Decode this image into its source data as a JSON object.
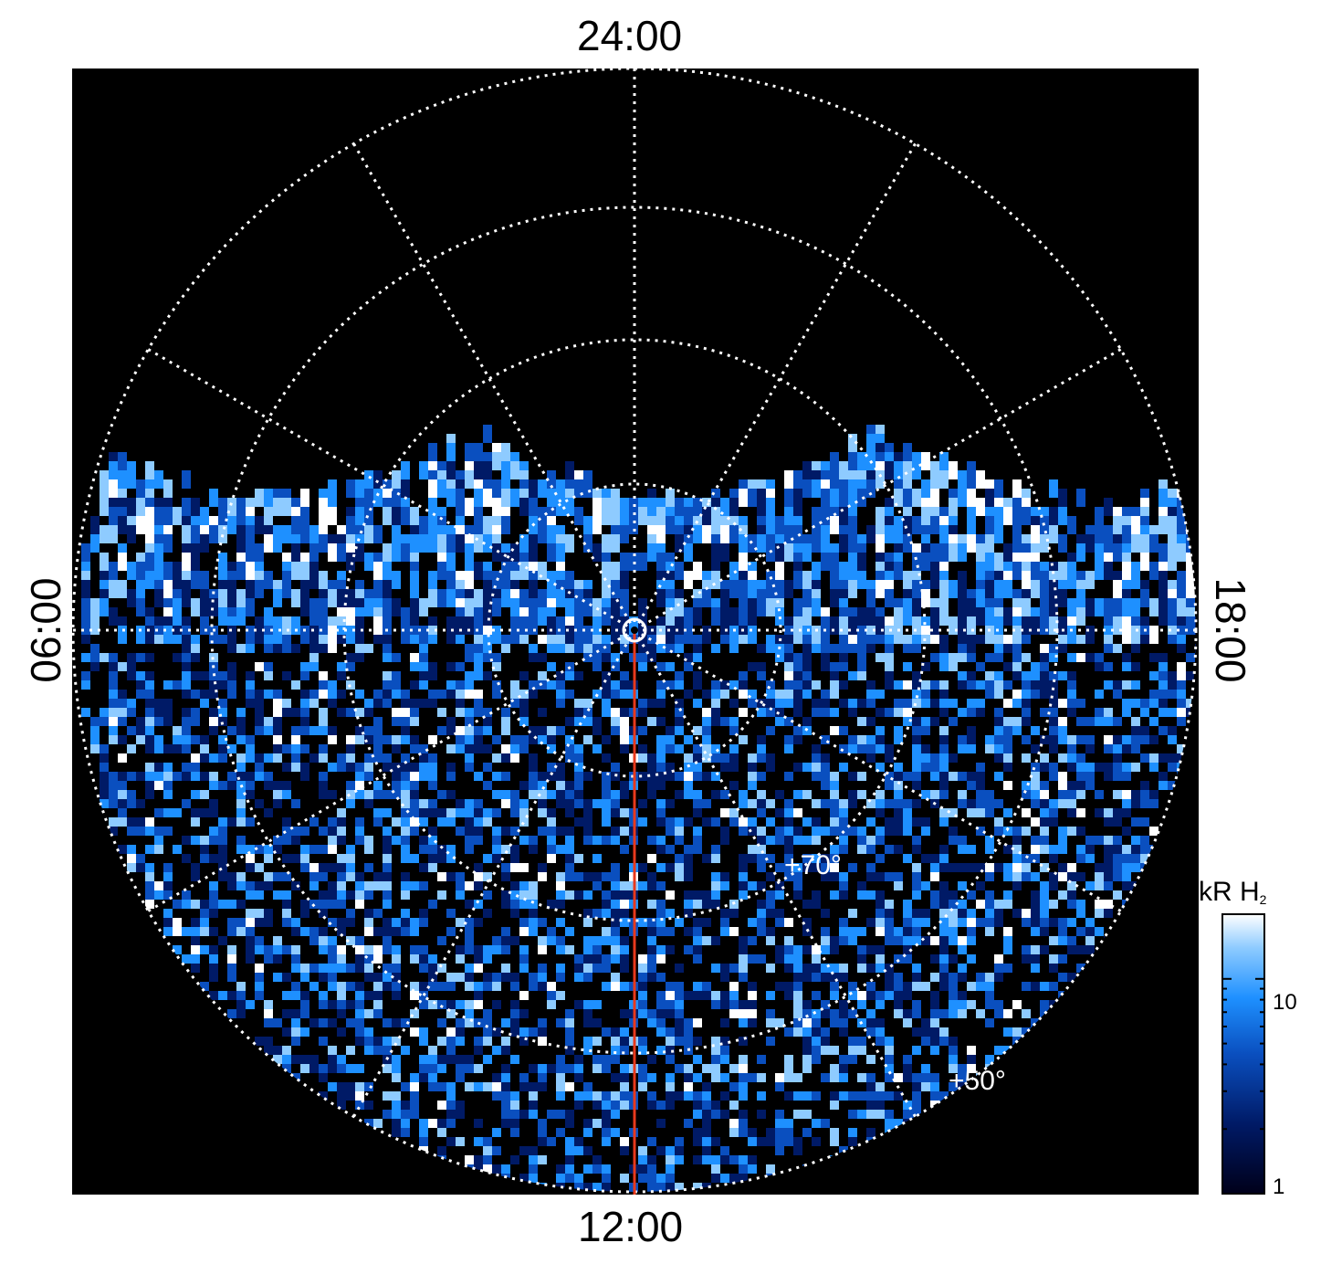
{
  "local_time_labels": {
    "top": "24:00",
    "bottom": "12:00",
    "left": "06:00",
    "right": "18:00"
  },
  "latitude_labels": [
    "+70°",
    "+50°"
  ],
  "colorbar": {
    "title": "kR H",
    "title_subscript": "2",
    "scale": "log",
    "range": [
      1,
      20
    ],
    "tick_labels": [
      "10",
      "1"
    ],
    "colors": [
      "#00001a",
      "#001a66",
      "#0a4fbf",
      "#1e90ff",
      "#8ecbff",
      "#ffffff"
    ]
  },
  "colors": {
    "background": "#000000",
    "grid": "#ffffff",
    "meridian_line": "#e8391c"
  }
}
